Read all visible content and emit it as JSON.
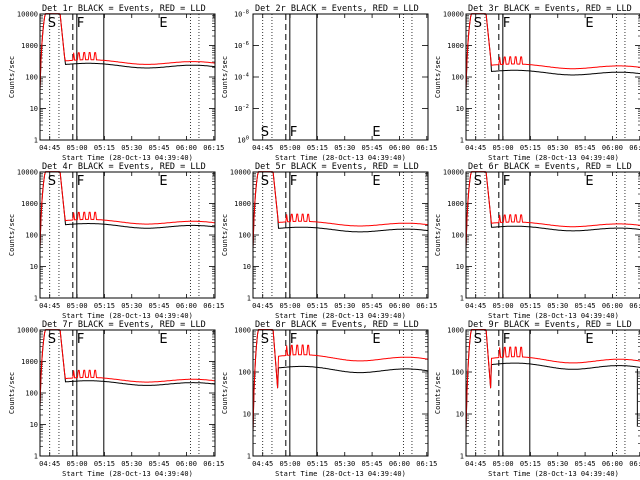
{
  "chart_data": [
    {
      "type": "line",
      "title": "Det 1r BLACK = Events, RED = LLD",
      "ylabel": "Counts/sec",
      "xlabel": "Start Time (28-Oct-13 04:39:40)",
      "has_data": true,
      "xticks": [
        "04:45",
        "05:00",
        "05:15",
        "05:30",
        "05:45",
        "06:00",
        "06:15"
      ],
      "yticks": [
        "1",
        "10",
        "100",
        "1000",
        "10000"
      ],
      "ylim": [
        1,
        10000
      ],
      "xlim_minutes": [
        0,
        96
      ],
      "markers": [
        "S",
        "F",
        "E"
      ],
      "series": [
        {
          "name": "Events",
          "color": "#000000",
          "start": 0.78,
          "floor": 1.0,
          "steady": 200,
          "step": 0,
          "dip": 0
        },
        {
          "name": "LLD",
          "color": "#ff0000",
          "start": 0.78,
          "floor": 1.0,
          "steady": 260,
          "step": 0,
          "dip": 0
        }
      ]
    },
    {
      "type": "line",
      "title": "Det 2r BLACK = Events, RED = LLD",
      "ylabel": "Counts/sec",
      "xlabel": "Start Time (28-Oct-13 04:39:40)",
      "has_data": false,
      "xticks": [
        "04:45",
        "05:00",
        "05:15",
        "05:30",
        "05:45",
        "06:00",
        "06:15"
      ],
      "yticks": [
        "10^0",
        "10^-2",
        "10^-4",
        "10^-6",
        "10^-8"
      ],
      "markers": [
        "S",
        "F",
        "E"
      ],
      "series": []
    },
    {
      "type": "line",
      "title": "Det 3r BLACK = Events, RED = LLD",
      "ylabel": "Counts/sec",
      "xlabel": "Start Time (28-Oct-13 04:39:40)",
      "has_data": true,
      "xticks": [
        "04:45",
        "05:00",
        "05:15",
        "05:30",
        "05:45",
        "06:00",
        "06:15"
      ],
      "yticks": [
        "1",
        "10",
        "100",
        "1000",
        "10000"
      ],
      "ylim": [
        1,
        10000
      ],
      "xlim_minutes": [
        0,
        96
      ],
      "markers": [
        "S",
        "F",
        "E"
      ],
      "series": [
        {
          "name": "Events",
          "color": "#000000",
          "start": 0.78,
          "floor": 1.0,
          "steady": 120,
          "step": 0,
          "dip": 0
        },
        {
          "name": "LLD",
          "color": "#ff0000",
          "start": 0.78,
          "floor": 1.0,
          "steady": 190,
          "step": 0,
          "dip": 0
        }
      ]
    },
    {
      "type": "line",
      "title": "Det 4r BLACK = Events, RED = LLD",
      "ylabel": "Counts/sec",
      "xlabel": "Start Time (28-Oct-13 04:39:40)",
      "has_data": true,
      "xticks": [
        "04:45",
        "05:00",
        "05:15",
        "05:30",
        "05:45",
        "06:00",
        "06:15"
      ],
      "yticks": [
        "1",
        "10",
        "100",
        "1000",
        "10000"
      ],
      "ylim": [
        1,
        10000
      ],
      "xlim_minutes": [
        0,
        96
      ],
      "markers": [
        "S",
        "F",
        "E"
      ],
      "series": [
        {
          "name": "Events",
          "color": "#000000",
          "start": 0.78,
          "floor": 1.0,
          "steady": 170,
          "step": 0,
          "dip": 0
        },
        {
          "name": "LLD",
          "color": "#ff0000",
          "start": 0.78,
          "floor": 1.0,
          "steady": 230,
          "step": 0,
          "dip": 0
        }
      ]
    },
    {
      "type": "line",
      "title": "Det 5r BLACK = Events, RED = LLD",
      "ylabel": "Counts/sec",
      "xlabel": "Start Time (28-Oct-13 04:39:40)",
      "has_data": true,
      "xticks": [
        "04:45",
        "05:00",
        "05:15",
        "05:30",
        "05:45",
        "06:00",
        "06:15"
      ],
      "yticks": [
        "1",
        "10",
        "100",
        "1000",
        "10000"
      ],
      "ylim": [
        1,
        10000
      ],
      "xlim_minutes": [
        0,
        96
      ],
      "markers": [
        "S",
        "F",
        "E"
      ],
      "series": [
        {
          "name": "Events",
          "color": "#000000",
          "start": 0.78,
          "floor": 1.0,
          "steady": 130,
          "step": 0,
          "dip": 0
        },
        {
          "name": "LLD",
          "color": "#ff0000",
          "start": 0.78,
          "floor": 1.0,
          "steady": 200,
          "step": 0,
          "dip": 0
        }
      ]
    },
    {
      "type": "line",
      "title": "Det 6r BLACK = Events, RED = LLD",
      "ylabel": "Counts/sec",
      "xlabel": "Start Time (28-Oct-13 04:39:40)",
      "has_data": true,
      "xticks": [
        "04:45",
        "05:00",
        "05:15",
        "05:30",
        "05:45",
        "06:00",
        "06:15"
      ],
      "yticks": [
        "1",
        "10",
        "100",
        "1000",
        "10000"
      ],
      "ylim": [
        1,
        10000
      ],
      "xlim_minutes": [
        0,
        96
      ],
      "markers": [
        "S",
        "F",
        "E"
      ],
      "series": [
        {
          "name": "Events",
          "color": "#000000",
          "start": 0.78,
          "floor": 1.0,
          "steady": 140,
          "step": 0,
          "dip": 0
        },
        {
          "name": "LLD",
          "color": "#ff0000",
          "start": 0.78,
          "floor": 1.0,
          "steady": 190,
          "step": 0,
          "dip": 0
        }
      ]
    },
    {
      "type": "line",
      "title": "Det 7r BLACK = Events, RED = LLD",
      "ylabel": "Counts/sec",
      "xlabel": "Start Time (28-Oct-13 04:39:40)",
      "has_data": true,
      "xticks": [
        "04:45",
        "05:00",
        "05:15",
        "05:30",
        "05:45",
        "06:00",
        "06:15"
      ],
      "yticks": [
        "1",
        "10",
        "100",
        "1000",
        "10000"
      ],
      "ylim": [
        1,
        10000
      ],
      "xlim_minutes": [
        0,
        96
      ],
      "markers": [
        "S",
        "F",
        "E"
      ],
      "series": [
        {
          "name": "Events",
          "color": "#000000",
          "start": 0.78,
          "floor": 1.0,
          "steady": 180,
          "step": 0,
          "dip": 0
        },
        {
          "name": "LLD",
          "color": "#ff0000",
          "start": 0.78,
          "floor": 1.0,
          "steady": 230,
          "step": 0,
          "dip": 0
        }
      ]
    },
    {
      "type": "line",
      "title": "Det 8r BLACK = Events, RED = LLD",
      "ylabel": "Counts/sec",
      "xlabel": "Start Time (28-Oct-13 04:39:40)",
      "has_data": true,
      "xticks": [
        "04:45",
        "05:00",
        "05:15",
        "05:30",
        "05:45",
        "06:00",
        "06:15"
      ],
      "yticks": [
        "1",
        "10",
        "100",
        "1000"
      ],
      "ylim": [
        1,
        1000
      ],
      "xlim_minutes": [
        0,
        96
      ],
      "markers": [
        "S",
        "F",
        "E"
      ],
      "series": [
        {
          "name": "Events",
          "color": "#000000",
          "start": 0.78,
          "floor": 1.0,
          "steady": 100,
          "step": 0,
          "dip": 0
        },
        {
          "name": "LLD",
          "color": "#ff0000",
          "start": 0.78,
          "floor": 1.0,
          "steady": 190,
          "step": 0,
          "dip": 0
        }
      ]
    },
    {
      "type": "line",
      "title": "Det 9r BLACK = Events, RED = LLD",
      "ylabel": "Counts/sec",
      "xlabel": "Start Time (28-Oct-13 04:39:40)",
      "has_data": true,
      "xticks": [
        "04:45",
        "05:00",
        "05:15",
        "05:30",
        "05:45",
        "06:00",
        "06:15"
      ],
      "yticks": [
        "1",
        "10",
        "100",
        "1000"
      ],
      "ylim": [
        1,
        1000
      ],
      "xlim_minutes": [
        0,
        96
      ],
      "markers": [
        "S",
        "F",
        "E"
      ],
      "series": [
        {
          "name": "Events",
          "color": "#000000",
          "start": 0.78,
          "floor": 1.0,
          "steady": 120,
          "step": 0,
          "dip": 1
        },
        {
          "name": "LLD",
          "color": "#ff0000",
          "start": 0.78,
          "floor": 1.0,
          "steady": 170,
          "step": 0,
          "dip": 0
        }
      ]
    }
  ]
}
